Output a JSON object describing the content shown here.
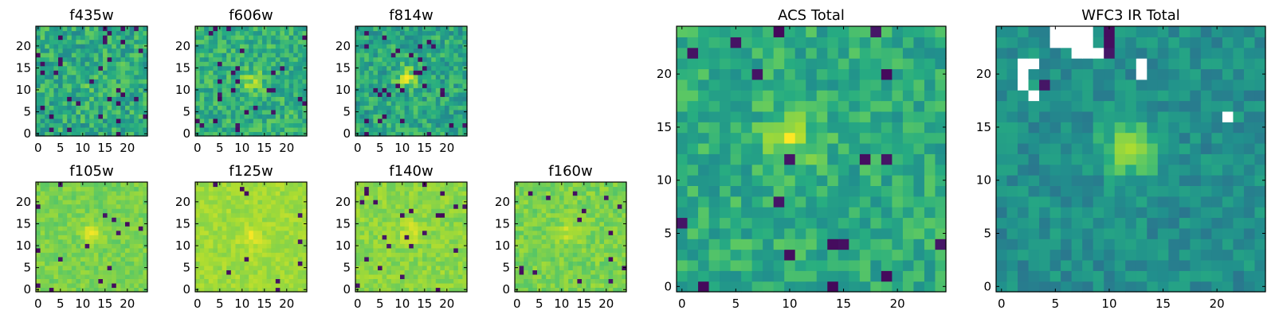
{
  "chart_data": [
    {
      "type": "heatmap",
      "title": "f435w",
      "grid_size": 25,
      "xlim": [
        0,
        24
      ],
      "ylim": [
        0,
        24
      ],
      "xticks": [
        0,
        5,
        10,
        15,
        20
      ],
      "yticks": [
        0,
        5,
        10,
        15,
        20
      ],
      "xtick_labels": [
        "0",
        "5",
        "10",
        "15",
        "20"
      ],
      "ytick_labels": [
        "0",
        "5",
        "10",
        "15",
        "20"
      ],
      "colormap": "viridis",
      "central_source": [
        12,
        12
      ],
      "source_strength": 0.05,
      "noise": 0.16,
      "base_level": 0.62,
      "dark_fraction": 0.05,
      "masked_cells": [],
      "seed": 11
    },
    {
      "type": "heatmap",
      "title": "f606w",
      "grid_size": 25,
      "xlim": [
        0,
        24
      ],
      "ylim": [
        0,
        24
      ],
      "xticks": [
        0,
        5,
        10,
        15,
        20
      ],
      "yticks": [
        0,
        5,
        10,
        15,
        20
      ],
      "xtick_labels": [
        "0",
        "5",
        "10",
        "15",
        "20"
      ],
      "ytick_labels": [
        "0",
        "5",
        "10",
        "15",
        "20"
      ],
      "colormap": "viridis",
      "central_source": [
        12,
        12
      ],
      "source_strength": 0.22,
      "noise": 0.14,
      "base_level": 0.64,
      "dark_fraction": 0.04,
      "masked_cells": [],
      "seed": 23
    },
    {
      "type": "heatmap",
      "title": "f814w",
      "grid_size": 25,
      "xlim": [
        0,
        24
      ],
      "ylim": [
        0,
        24
      ],
      "xticks": [
        0,
        5,
        10,
        15,
        20
      ],
      "yticks": [
        0,
        5,
        10,
        15,
        20
      ],
      "xtick_labels": [
        "0",
        "5",
        "10",
        "15",
        "20"
      ],
      "ytick_labels": [
        "0",
        "5",
        "10",
        "15",
        "20"
      ],
      "colormap": "viridis",
      "central_source": [
        11,
        13
      ],
      "source_strength": 0.3,
      "noise": 0.15,
      "base_level": 0.6,
      "dark_fraction": 0.05,
      "masked_cells": [],
      "seed": 37
    },
    {
      "type": "heatmap",
      "title": "f105w",
      "grid_size": 25,
      "xlim": [
        0,
        24
      ],
      "ylim": [
        0,
        24
      ],
      "xticks": [
        0,
        5,
        10,
        15,
        20
      ],
      "yticks": [
        0,
        5,
        10,
        15,
        20
      ],
      "xtick_labels": [
        "0",
        "5",
        "10",
        "15",
        "20"
      ],
      "ytick_labels": [
        "0",
        "5",
        "10",
        "15",
        "20"
      ],
      "colormap": "viridis",
      "central_source": [
        12,
        13
      ],
      "source_strength": 0.14,
      "noise": 0.06,
      "base_level": 0.8,
      "dark_fraction": 0.025,
      "masked_cells": [],
      "seed": 41
    },
    {
      "type": "heatmap",
      "title": "f125w",
      "grid_size": 25,
      "xlim": [
        0,
        24
      ],
      "ylim": [
        0,
        24
      ],
      "xticks": [
        0,
        5,
        10,
        15,
        20
      ],
      "yticks": [
        0,
        5,
        10,
        15,
        20
      ],
      "xtick_labels": [
        "0",
        "5",
        "10",
        "15",
        "20"
      ],
      "ytick_labels": [
        "0",
        "5",
        "10",
        "15",
        "20"
      ],
      "colormap": "viridis",
      "central_source": [
        12,
        12
      ],
      "source_strength": 0.1,
      "noise": 0.05,
      "base_level": 0.86,
      "dark_fraction": 0.02,
      "masked_cells": [],
      "seed": 53
    },
    {
      "type": "heatmap",
      "title": "f140w",
      "grid_size": 25,
      "xlim": [
        0,
        24
      ],
      "ylim": [
        0,
        24
      ],
      "xticks": [
        0,
        5,
        10,
        15,
        20
      ],
      "yticks": [
        0,
        5,
        10,
        15,
        20
      ],
      "xtick_labels": [
        "0",
        "5",
        "10",
        "15",
        "20"
      ],
      "ytick_labels": [
        "0",
        "5",
        "10",
        "15",
        "20"
      ],
      "colormap": "viridis",
      "central_source": [
        12,
        13
      ],
      "source_strength": 0.12,
      "noise": 0.06,
      "base_level": 0.83,
      "dark_fraction": 0.025,
      "masked_cells": [],
      "seed": 67
    },
    {
      "type": "heatmap",
      "title": "f160w",
      "grid_size": 25,
      "xlim": [
        0,
        24
      ],
      "ylim": [
        0,
        24
      ],
      "xticks": [
        0,
        5,
        10,
        15,
        20
      ],
      "yticks": [
        0,
        5,
        10,
        15,
        20
      ],
      "xtick_labels": [
        "0",
        "5",
        "10",
        "15",
        "20"
      ],
      "ytick_labels": [
        "0",
        "5",
        "10",
        "15",
        "20"
      ],
      "colormap": "viridis",
      "central_source": [
        12,
        13
      ],
      "source_strength": 0.12,
      "noise": 0.07,
      "base_level": 0.8,
      "dark_fraction": 0.03,
      "masked_cells": [],
      "seed": 79
    },
    {
      "type": "heatmap",
      "title": "ACS Total",
      "grid_size": 25,
      "xlim": [
        0,
        24
      ],
      "ylim": [
        0,
        24
      ],
      "xticks": [
        0,
        5,
        10,
        15,
        20
      ],
      "yticks": [
        0,
        5,
        10,
        15,
        20
      ],
      "xtick_labels": [
        "0",
        "5",
        "10",
        "15",
        "20"
      ],
      "ytick_labels": [
        "0",
        "5",
        "10",
        "15",
        "20"
      ],
      "colormap": "viridis",
      "central_source": [
        10,
        14
      ],
      "source_strength": 0.28,
      "noise": 0.13,
      "base_level": 0.62,
      "dark_fraction": 0.035,
      "masked_cells": [],
      "seed": 97
    },
    {
      "type": "heatmap",
      "title": "WFC3 IR Total",
      "grid_size": 25,
      "xlim": [
        0,
        24
      ],
      "ylim": [
        0,
        24
      ],
      "xticks": [
        0,
        5,
        10,
        15,
        20
      ],
      "yticks": [
        0,
        5,
        10,
        15,
        20
      ],
      "xtick_labels": [
        "0",
        "5",
        "10",
        "15",
        "20"
      ],
      "ytick_labels": [
        "0",
        "5",
        "10",
        "15",
        "20"
      ],
      "colormap": "viridis",
      "central_source": [
        12,
        13
      ],
      "source_strength": 0.4,
      "noise": 0.1,
      "base_level": 0.5,
      "dark_fraction": 0.0,
      "masked_cells": [
        [
          5,
          24
        ],
        [
          6,
          24
        ],
        [
          7,
          24
        ],
        [
          8,
          24
        ],
        [
          5,
          23
        ],
        [
          6,
          23
        ],
        [
          7,
          23
        ],
        [
          8,
          23
        ],
        [
          7,
          22
        ],
        [
          8,
          22
        ],
        [
          9,
          22
        ],
        [
          2,
          21
        ],
        [
          3,
          21
        ],
        [
          13,
          21
        ],
        [
          2,
          20
        ],
        [
          13,
          20
        ],
        [
          2,
          19
        ],
        [
          3,
          18
        ],
        [
          21,
          16
        ]
      ],
      "dark_cells": [
        [
          10,
          24
        ],
        [
          10,
          23
        ],
        [
          10,
          22
        ],
        [
          3,
          21
        ],
        [
          4,
          19
        ]
      ],
      "seed": 113
    }
  ]
}
